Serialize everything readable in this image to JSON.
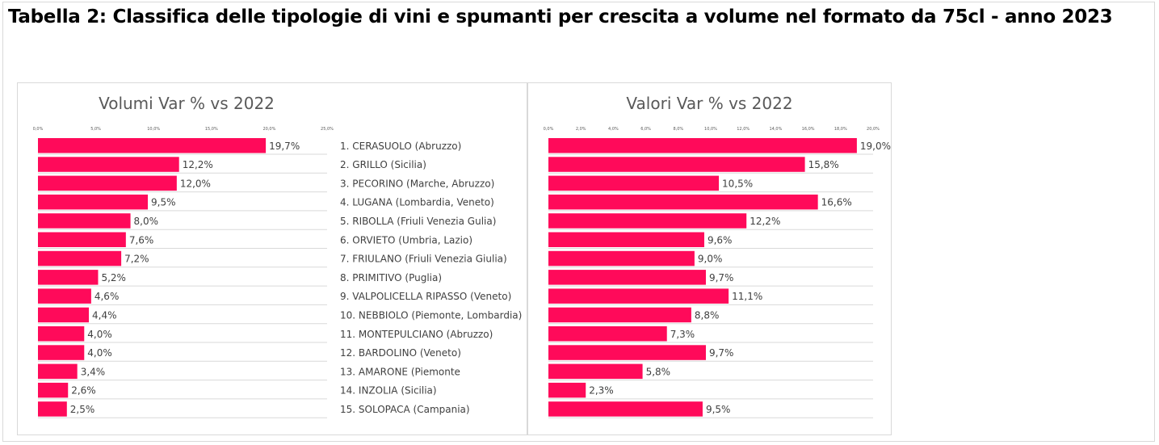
{
  "page_title": "Tabella 2: Classifica delle tipologie di vini e spumanti per crescita a volume nel formato da 75cl - anno 2023",
  "bar_color": "#ff0a5a",
  "chart_data": [
    {
      "type": "bar",
      "orientation": "horizontal",
      "title": "Volumi Var % vs 2022",
      "categories": [
        "1. CERASUOLO (Abruzzo)",
        "2. GRILLO (Sicilia)",
        "3. PECORINO (Marche, Abruzzo)",
        "4. LUGANA (Lombardia, Veneto)",
        "5. RIBOLLA (Friuli Venezia Gulia)",
        "6. ORVIETO (Umbria, Lazio)",
        "7. FRIULANO (Friuli Venezia Giulia)",
        "8. PRIMITIVO (Puglia)",
        "9. VALPOLICELLA RIPASSO (Veneto)",
        "10. NEBBIOLO (Piemonte, Lombardia)",
        "11. MONTEPULCIANO (Abruzzo)",
        "12. BARDOLINO (Veneto)",
        "13. AMARONE (Piemonte",
        "14. INZOLIA (Sicilia)",
        "15. SOLOPACA (Campania)"
      ],
      "values": [
        19.7,
        12.2,
        12.0,
        9.5,
        8.0,
        7.6,
        7.2,
        5.2,
        4.6,
        4.4,
        4.0,
        4.0,
        3.4,
        2.6,
        2.5
      ],
      "value_labels": [
        "19,7%",
        "12,2%",
        "12,0%",
        "9,5%",
        "8,0%",
        "7,6%",
        "7,2%",
        "5,2%",
        "4,6%",
        "4,4%",
        "4,0%",
        "4,0%",
        "3,4%",
        "2,6%",
        "2,5%"
      ],
      "xlim": [
        0,
        25
      ],
      "ticks": [
        0,
        5,
        10,
        15,
        20,
        25
      ],
      "tick_labels": [
        "0,0%",
        "5,0%",
        "10,0%",
        "15,0%",
        "20,0%",
        "25,0%"
      ],
      "grid": false,
      "legend": "none"
    },
    {
      "type": "bar",
      "orientation": "horizontal",
      "title": "Valori Var % vs 2022",
      "values": [
        19.0,
        15.8,
        10.5,
        16.6,
        12.2,
        9.6,
        9.0,
        9.7,
        11.1,
        8.8,
        7.3,
        9.7,
        5.8,
        2.3,
        9.5
      ],
      "value_labels": [
        "19,0%",
        "15,8%",
        "10,5%",
        "16,6%",
        "12,2%",
        "9,6%",
        "9,0%",
        "9,7%",
        "11,1%",
        "8,8%",
        "7,3%",
        "9,7%",
        "5,8%",
        "2,3%",
        "9,5%"
      ],
      "xlim": [
        0,
        20
      ],
      "ticks": [
        0,
        2,
        4,
        6,
        8,
        10,
        12,
        14,
        16,
        18,
        20
      ],
      "tick_labels": [
        "0,0%",
        "2,0%",
        "4,0%",
        "6,0%",
        "8,0%",
        "10,0%",
        "12,0%",
        "14,0%",
        "16,0%",
        "18,0%",
        "20,0%"
      ],
      "grid": false,
      "legend": "none"
    }
  ]
}
